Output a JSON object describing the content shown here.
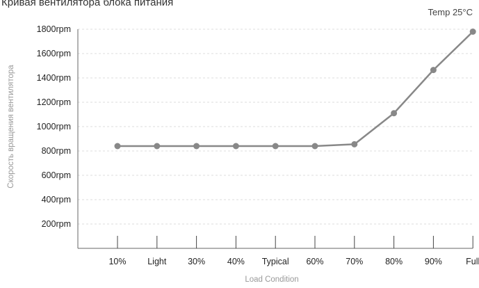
{
  "chart_data": {
    "type": "line",
    "title": "Кривая вентилятора блока питания",
    "annotation": "Temp 25°C",
    "xlabel": "Load Condition",
    "ylabel": "Скорость вращения вентилятора",
    "categories": [
      "10%",
      "Light",
      "30%",
      "40%",
      "Typical",
      "60%",
      "70%",
      "80%",
      "90%",
      "Full"
    ],
    "series": [
      {
        "values": [
          840,
          840,
          840,
          840,
          840,
          840,
          855,
          1110,
          1465,
          1780
        ]
      }
    ],
    "yticks": [
      200,
      400,
      600,
      800,
      1000,
      1200,
      1400,
      1600,
      1800
    ],
    "ytick_labels": [
      "200rpm",
      "400rpm",
      "600rpm",
      "800rpm",
      "1000rpm",
      "1200rpm",
      "1400rpm",
      "1600rpm",
      "1800rpm"
    ],
    "ylim": [
      0,
      1800
    ],
    "grid": true,
    "colors": {
      "line": "#888888",
      "grid": "#dddddd",
      "axis": "#666666"
    }
  }
}
